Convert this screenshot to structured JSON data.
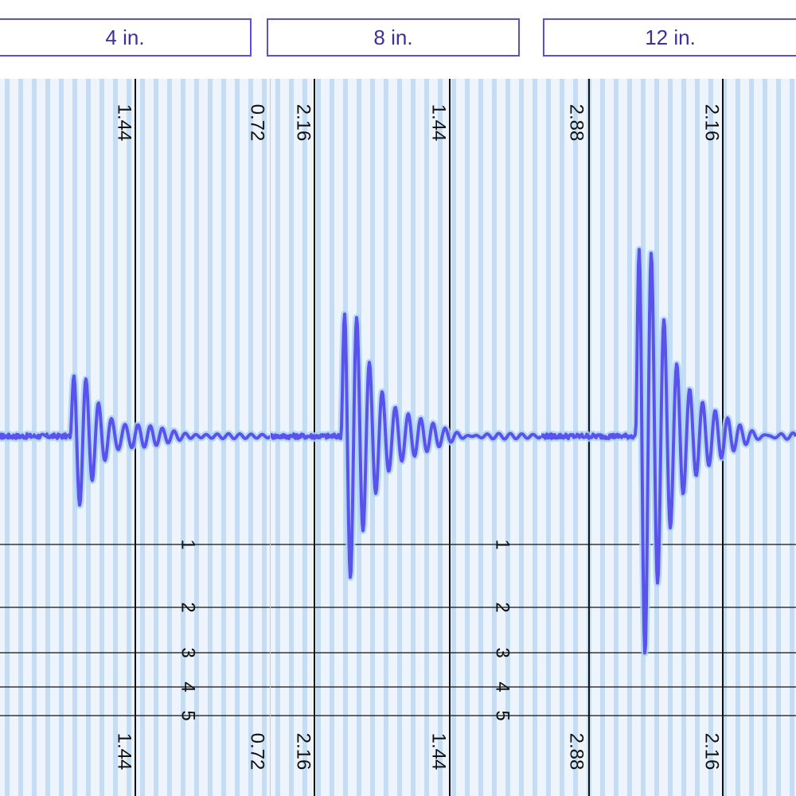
{
  "colors": {
    "trace": "#5b52ee",
    "trace_glow": "#a8d2f5",
    "stripe_dark": "#c4ddf5",
    "stripe_light": "#eef4fc",
    "grid": "#111111",
    "label_border": "#5b4fd9",
    "label_text": "#3c2fa0"
  },
  "chart_data": [
    {
      "type": "line",
      "title": "4 in.",
      "top_ticks": [
        "1.44",
        "0.72"
      ],
      "bottom_ticks": [
        "1.44",
        "0.72"
      ],
      "scale_labels": [
        "1",
        "2",
        "3",
        "4",
        "5"
      ],
      "amplitude": 0.95,
      "onset_fraction": 0.26
    },
    {
      "type": "line",
      "title": "8 in.",
      "top_ticks": [
        "2.16",
        "1.44"
      ],
      "bottom_ticks": [
        "2.16",
        "1.44"
      ],
      "scale_labels": [
        "1",
        "2",
        "3",
        "4",
        "5"
      ],
      "amplitude": 2.05,
      "onset_fraction": 0.26
    },
    {
      "type": "line",
      "title": "12 in.",
      "top_ticks": [
        "2.88",
        "2.16"
      ],
      "bottom_ticks": [
        "2.88",
        "2.16"
      ],
      "scale_labels": [],
      "amplitude": 3.2,
      "onset_fraction": 0.37
    }
  ]
}
